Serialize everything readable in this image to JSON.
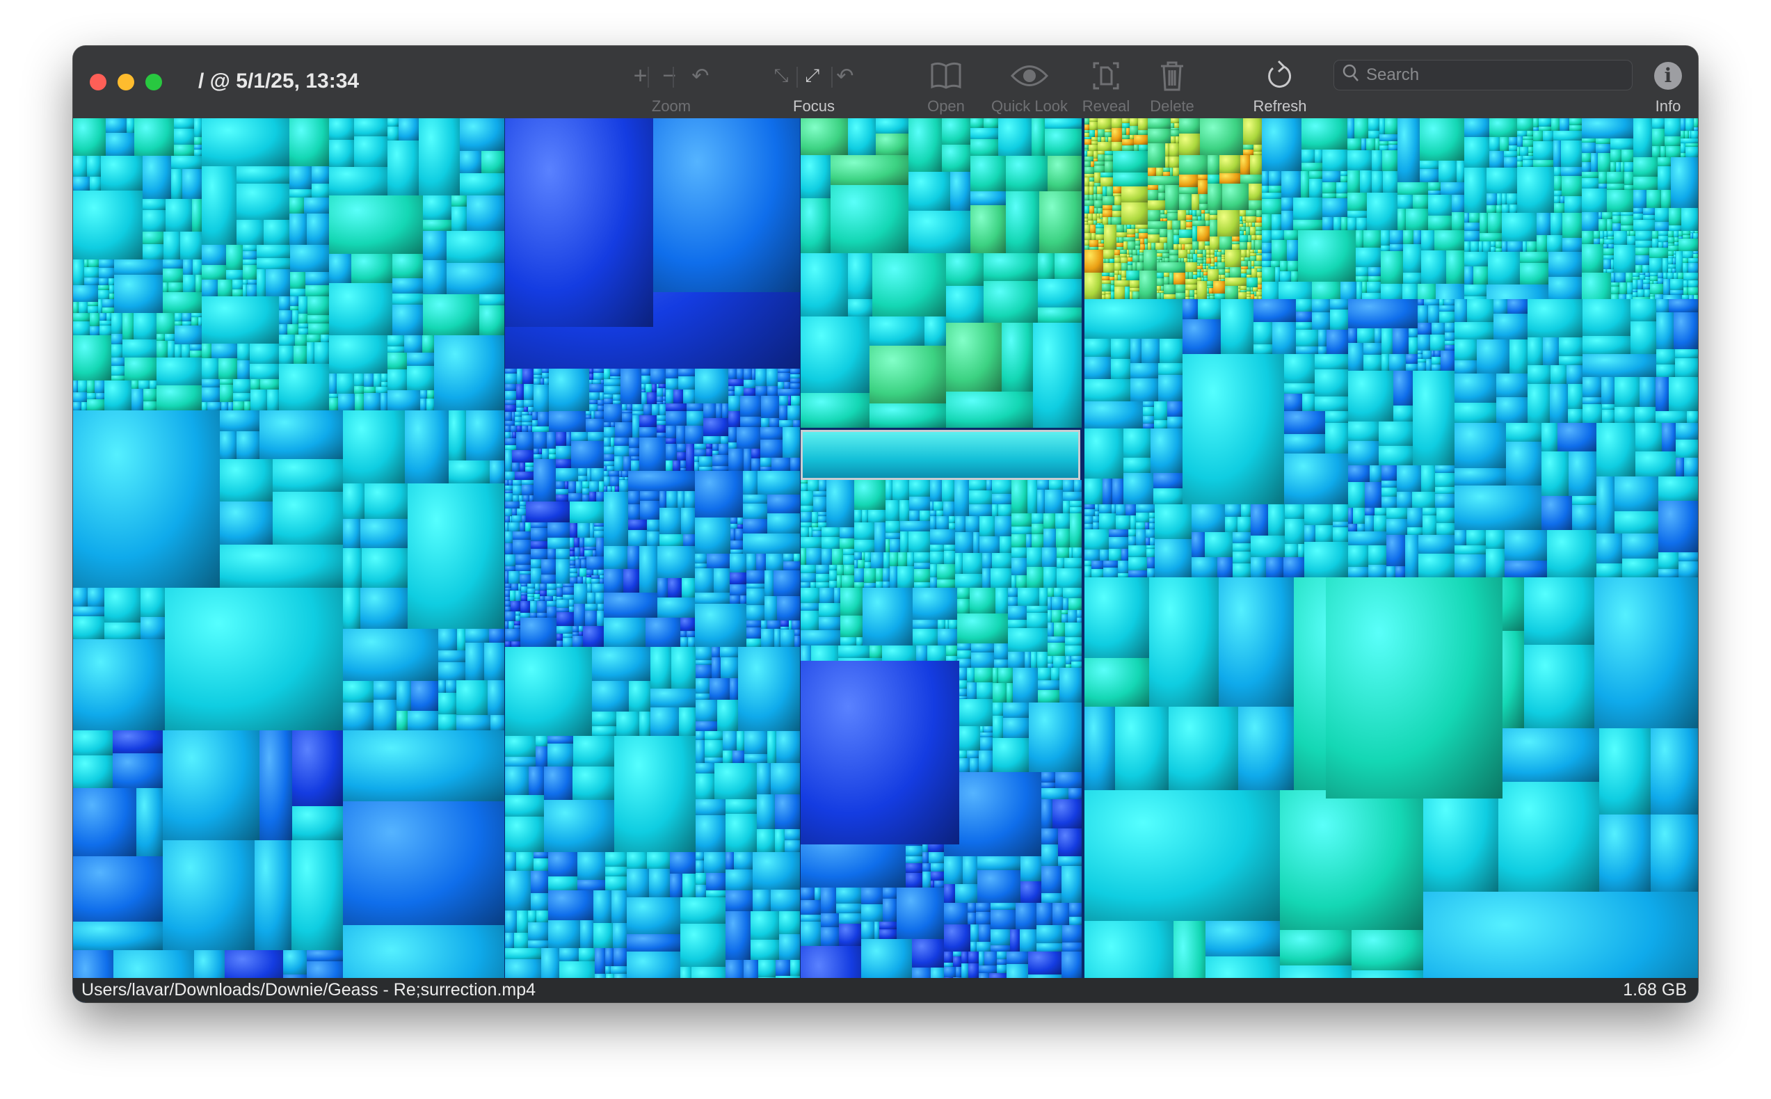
{
  "window": {
    "title": "/ @ 5/1/25, 13:34"
  },
  "toolbar": {
    "zoom_label": "Zoom",
    "focus_label": "Focus",
    "open_label": "Open",
    "quicklook_label": "Quick Look",
    "reveal_label": "Reveal",
    "delete_label": "Delete",
    "refresh_label": "Refresh",
    "info_label": "Info",
    "search_placeholder": "Search"
  },
  "colors": {
    "close": "#fe5f57",
    "minimize": "#febc2e",
    "maximize": "#28c840",
    "selection_border": "#c8cdd2"
  },
  "status": {
    "path": "Users/lavar/Downloads/Downie/Geass - Re;surrection.mp4",
    "size": "1.68 GB"
  }
}
